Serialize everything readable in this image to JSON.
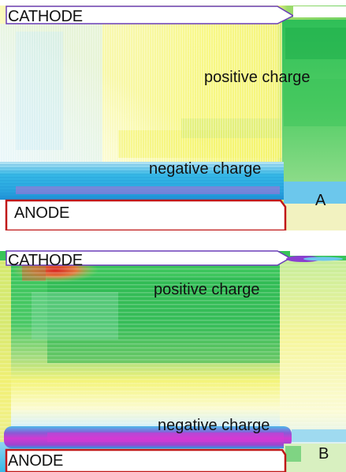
{
  "panels": [
    {
      "id": "A",
      "letter": "A",
      "cathode_label": "CATHODE",
      "anode_label": "ANODE",
      "positive_label": "positive charge",
      "negative_label": "negative charge"
    },
    {
      "id": "B",
      "letter": "B",
      "cathode_label": "CATHODE",
      "anode_label": "ANODE",
      "positive_label": "positive charge",
      "negative_label": "negative charge"
    }
  ],
  "colors": {
    "background_white": "#ffffff",
    "light_blue": "#bfe8f6",
    "cyan": "#35b8e6",
    "blue": "#1f8fd6",
    "yellow": "#f4f46a",
    "pale_yellow": "#fbfbc4",
    "green": "#3ecb5a",
    "dark_green": "#16a64a",
    "magenta": "#d23ad2",
    "purple": "#8a3fd0",
    "red": "#d82222",
    "orange": "#e8a640",
    "electrode_fill": "#ffffff",
    "electrode_outline_top": "#6a3db8",
    "electrode_outline_bottom": "#c01818"
  }
}
